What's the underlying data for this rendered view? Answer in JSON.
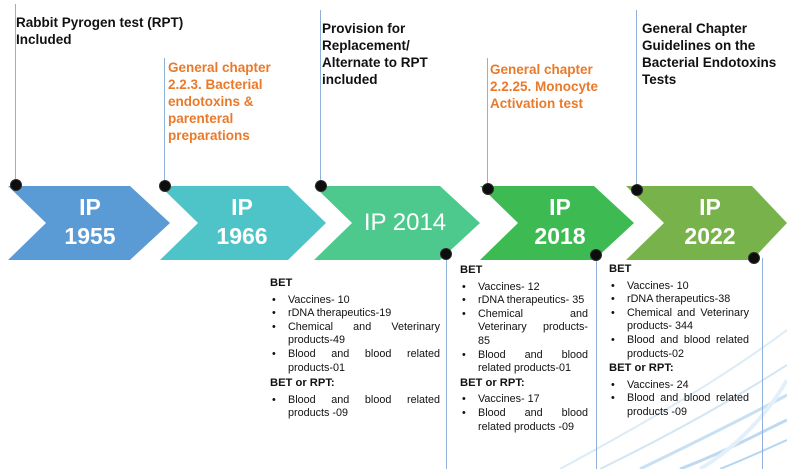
{
  "milestones": [
    {
      "year_label": "IP\n1955",
      "arrow_color": "#5b9bd5",
      "top_text": "Rabbit Pyrogen test (RPT)\nIncluded",
      "top_text_color": "#111111"
    },
    {
      "year_label": "IP\n1966",
      "arrow_color": "#4fc4c8",
      "top_text": "General chapter\n2.2.3. Bacterial\nendotoxins &\nparenteral\npreparations",
      "top_text_color": "#e97a2b"
    },
    {
      "year_label": "IP 2014",
      "arrow_color": "#4ec98d",
      "top_text": "Provision for\nReplacement/\nAlternate  to RPT\nincluded",
      "top_text_color": "#111111"
    },
    {
      "year_label": "IP\n2018",
      "arrow_color": "#3dbb52",
      "top_text": "General chapter\n2.2.25. Monocyte\nActivation test",
      "top_text_color": "#e97a2b"
    },
    {
      "year_label": "IP\n2022",
      "arrow_color": "#77b24a",
      "top_text": "General Chapter\nGuidelines on the\nBacterial Endotoxins\nTests",
      "top_text_color": "#111111"
    }
  ],
  "panels": {
    "ip2014": {
      "bet_heading": "BET",
      "bet_items": [
        "Vaccines- 10",
        "rDNA therapeutics-19",
        "Chemical and Veterinary products-49",
        "Blood and blood related products-01"
      ],
      "bet_rpt_heading": "BET or RPT:",
      "bet_rpt_items": [
        "Blood and blood related products -09"
      ]
    },
    "ip2018": {
      "bet_heading": "BET",
      "bet_items": [
        "Vaccines- 12",
        "rDNA therapeutics- 35",
        "Chemical and Veterinary products- 85",
        "Blood and blood related products-01"
      ],
      "bet_rpt_heading": "BET or RPT:",
      "bet_rpt_items": [
        "Vaccines- 17",
        "Blood and blood related products -09"
      ]
    },
    "ip2022": {
      "bet_heading": "BET",
      "bet_items": [
        "Vaccines- 10",
        "rDNA therapeutics-38",
        "Chemical and Veterinary products- 344",
        "Blood and blood related products-02"
      ],
      "bet_rpt_heading": "BET or RPT:",
      "bet_rpt_items": [
        "Vaccines- 24",
        "Blood and blood related products -09"
      ]
    }
  }
}
